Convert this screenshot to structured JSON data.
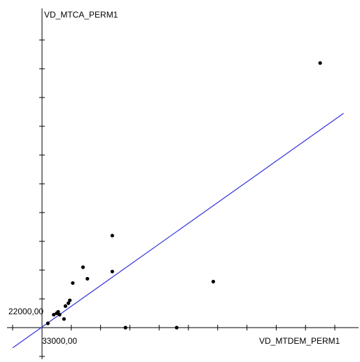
{
  "chart_data": {
    "type": "scatter",
    "title": "",
    "xlabel": "VD_MTDEM_PERM1",
    "ylabel": "VD_MTCA_PERM1",
    "x_origin_label": "33000,00",
    "y_origin_label": "22000,00",
    "xlim": [
      0,
      10
    ],
    "ylim": [
      0,
      10
    ],
    "grid": false,
    "points": [
      {
        "x": 0.2,
        "y": 0.15
      },
      {
        "x": 0.4,
        "y": 0.45
      },
      {
        "x": 0.5,
        "y": 0.5
      },
      {
        "x": 0.55,
        "y": 0.55
      },
      {
        "x": 0.6,
        "y": 0.45
      },
      {
        "x": 0.75,
        "y": 0.3
      },
      {
        "x": 0.8,
        "y": 0.75
      },
      {
        "x": 0.9,
        "y": 0.85
      },
      {
        "x": 0.95,
        "y": 0.95
      },
      {
        "x": 1.05,
        "y": 1.55
      },
      {
        "x": 1.4,
        "y": 2.1
      },
      {
        "x": 1.55,
        "y": 1.7
      },
      {
        "x": 2.4,
        "y": 1.95
      },
      {
        "x": 2.4,
        "y": 3.2
      },
      {
        "x": 2.85,
        "y": 0.0
      },
      {
        "x": 4.6,
        "y": 0.0
      },
      {
        "x": 5.85,
        "y": 1.6
      },
      {
        "x": 9.5,
        "y": 9.2
      }
    ],
    "trendline": {
      "x1": -1.0,
      "y1": -0.7,
      "x2": 10.3,
      "y2": 7.45,
      "color": "#3333dd"
    }
  }
}
